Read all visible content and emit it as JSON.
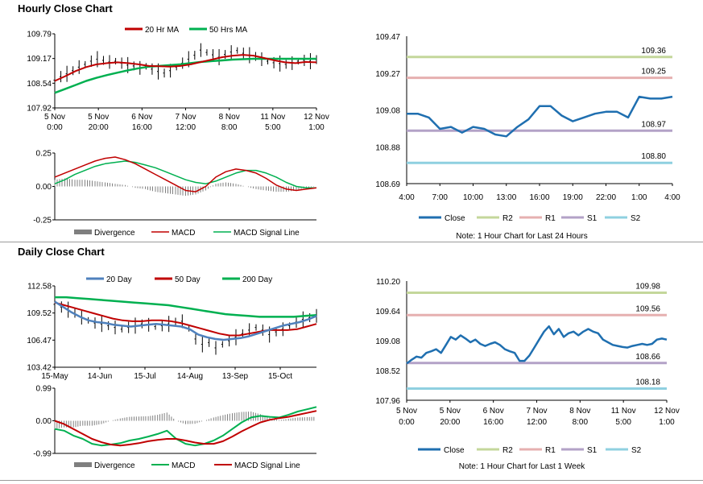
{
  "page": {
    "hourly_title": "Hourly Close Chart",
    "daily_title": "Daily Close Chart"
  },
  "colors": {
    "close": "#1f6fb0",
    "r2": "#c4d79b",
    "r1": "#e6b0b0",
    "s1": "#b3a2c7",
    "s2": "#8fd0e0",
    "ma_red": "#c00000",
    "ma_green": "#00b050",
    "ma_blue": "#4f81bd",
    "divergence": "#7f7f7f"
  },
  "chart_data": [
    {
      "id": "hourly_price",
      "type": "line",
      "title": "",
      "legend": [
        "20 Hr MA",
        "50 Hrs MA"
      ],
      "legend_position": "top",
      "ylim": [
        107.92,
        109.79
      ],
      "yticks": [
        "109.79",
        "109.17",
        "108.54",
        "107.92"
      ],
      "xticks": [
        [
          "5 Nov",
          "0:00"
        ],
        [
          "5 Nov",
          "20:00"
        ],
        [
          "6 Nov",
          "16:00"
        ],
        [
          "7 Nov",
          "12:00"
        ],
        [
          "8 Nov",
          "8:00"
        ],
        [
          "11 Nov",
          "5:00"
        ],
        [
          "12 Nov",
          "1:00"
        ]
      ],
      "series": [
        {
          "name": "Close",
          "values": [
            108.62,
            108.71,
            108.78,
            108.86,
            108.95,
            109.02,
            109.1,
            109.15,
            109.12,
            109.08,
            109.1,
            109.05,
            109.0,
            108.98,
            108.93,
            108.97,
            108.9,
            108.84,
            108.8,
            108.86,
            108.95,
            109.05,
            109.15,
            109.25,
            109.38,
            109.32,
            109.26,
            109.2,
            109.27,
            109.33,
            109.37,
            109.3,
            109.25,
            109.22,
            109.15,
            109.1,
            109.06,
            109.04,
            109.02,
            109.05,
            109.1,
            109.12,
            109.1,
            109.14
          ]
        },
        {
          "name": "20 Hr MA",
          "values": [
            108.6,
            108.72,
            108.85,
            108.95,
            109.02,
            109.05,
            109.07,
            109.05,
            109.02,
            108.98,
            108.97,
            108.96,
            108.98,
            109.02,
            109.08,
            109.14,
            109.2,
            109.24,
            109.26,
            109.24,
            109.18,
            109.12,
            109.07,
            109.05,
            109.08,
            109.07
          ]
        },
        {
          "name": "50 Hrs MA",
          "values": [
            108.3,
            108.4,
            108.5,
            108.6,
            108.68,
            108.75,
            108.81,
            108.87,
            108.92,
            108.96,
            108.98,
            109.0,
            109.02,
            109.05,
            109.08,
            109.1,
            109.12,
            109.14,
            109.15,
            109.16,
            109.16,
            109.16,
            109.16,
            109.16,
            109.16,
            109.16
          ]
        }
      ]
    },
    {
      "id": "hourly_macd",
      "type": "line",
      "legend": [
        "Divergence",
        "MACD",
        "MACD Signal Line"
      ],
      "legend_position": "bottom",
      "ylim": [
        -0.25,
        0.25
      ],
      "yticks": [
        "0.25",
        "0.00",
        "-0.25"
      ],
      "series": [
        {
          "name": "MACD",
          "values": [
            0.07,
            0.1,
            0.13,
            0.16,
            0.19,
            0.21,
            0.22,
            0.2,
            0.17,
            0.13,
            0.09,
            0.05,
            0.01,
            -0.03,
            -0.04,
            0.0,
            0.07,
            0.11,
            0.13,
            0.12,
            0.1,
            0.06,
            0.01,
            -0.02,
            -0.03,
            -0.02,
            -0.01
          ]
        },
        {
          "name": "MACD Signal Line",
          "values": [
            0.02,
            0.05,
            0.09,
            0.12,
            0.15,
            0.17,
            0.18,
            0.19,
            0.18,
            0.16,
            0.14,
            0.11,
            0.08,
            0.05,
            0.03,
            0.02,
            0.04,
            0.07,
            0.1,
            0.12,
            0.12,
            0.1,
            0.07,
            0.03,
            0.0,
            -0.01,
            -0.01
          ]
        },
        {
          "name": "Divergence",
          "values": [
            0.05,
            0.06,
            0.05,
            0.05,
            0.04,
            0.03,
            0.02,
            0.01,
            -0.01,
            -0.02,
            -0.04,
            -0.05,
            -0.06,
            -0.07,
            -0.06,
            -0.03,
            0.02,
            0.03,
            0.02,
            0.0,
            -0.02,
            -0.03,
            -0.04,
            -0.04,
            -0.03,
            -0.01,
            0.0
          ]
        }
      ]
    },
    {
      "id": "hourly_levels",
      "type": "line",
      "legend": [
        "Close",
        "R2",
        "R1",
        "S1",
        "S2"
      ],
      "legend_position": "bottom",
      "note": "Note: 1 Hour Chart for Last 24 Hours",
      "ylim": [
        108.69,
        109.47
      ],
      "yticks": [
        "109.47",
        "109.27",
        "109.08",
        "108.88",
        "108.69"
      ],
      "xticks": [
        "4:00",
        "7:00",
        "10:00",
        "13:00",
        "16:00",
        "19:00",
        "22:00",
        "1:00",
        "4:00"
      ],
      "levels": [
        {
          "name": "R2",
          "value": 109.36,
          "label": "109.36"
        },
        {
          "name": "R1",
          "value": 109.25,
          "label": "109.25"
        },
        {
          "name": "S1",
          "value": 108.97,
          "label": "108.97"
        },
        {
          "name": "S2",
          "value": 108.8,
          "label": "108.80"
        }
      ],
      "series": [
        {
          "name": "Close",
          "values": [
            109.06,
            109.06,
            109.04,
            108.98,
            108.99,
            108.96,
            108.99,
            108.98,
            108.95,
            108.94,
            108.99,
            109.03,
            109.1,
            109.1,
            109.05,
            109.02,
            109.04,
            109.06,
            109.07,
            109.07,
            109.04,
            109.15,
            109.14,
            109.14,
            109.15
          ]
        }
      ]
    },
    {
      "id": "daily_price",
      "type": "line",
      "legend": [
        "20 Day",
        "50 Day",
        "200 Day"
      ],
      "legend_position": "top",
      "ylim": [
        103.42,
        112.58
      ],
      "yticks": [
        "112.58",
        "109.52",
        "106.47",
        "103.42"
      ],
      "xticks": [
        "15-May",
        "14-Jun",
        "15-Jul",
        "14-Aug",
        "13-Sep",
        "15-Oct"
      ],
      "series": [
        {
          "name": "Close",
          "values": [
            110.5,
            110.2,
            109.9,
            109.5,
            109.0,
            108.7,
            108.4,
            108.3,
            108.1,
            107.9,
            107.7,
            107.9,
            108.1,
            108.3,
            108.2,
            108.0,
            108.1,
            108.3,
            108.5,
            108.6,
            107.8,
            106.6,
            106.0,
            106.2,
            105.6,
            106.0,
            106.4,
            106.8,
            107.2,
            107.6,
            107.9,
            107.6,
            107.1,
            107.4,
            107.7,
            108.1,
            108.5,
            108.8,
            109.0,
            109.2
          ]
        },
        {
          "name": "20 Day",
          "values": [
            110.8,
            110.2,
            109.6,
            109.1,
            108.7,
            108.5,
            108.4,
            108.2,
            108.1,
            108.0,
            108.1,
            108.2,
            108.3,
            108.2,
            108.1,
            108.0,
            107.7,
            107.1,
            106.8,
            106.6,
            106.5,
            106.6,
            106.7,
            106.9,
            107.2,
            107.5,
            107.8,
            108.1,
            108.3,
            108.5,
            108.8,
            109.2
          ]
        },
        {
          "name": "50 Day",
          "values": [
            110.7,
            110.4,
            110.1,
            109.8,
            109.5,
            109.2,
            108.9,
            108.7,
            108.6,
            108.6,
            108.7,
            108.7,
            108.6,
            108.4,
            108.1,
            107.8,
            107.5,
            107.2,
            107.0,
            107.0,
            107.2,
            107.4,
            107.6,
            107.6,
            107.6,
            107.7,
            108.0,
            108.3
          ]
        },
        {
          "name": "200 Day",
          "values": [
            111.3,
            111.3,
            111.2,
            111.1,
            111.0,
            110.9,
            110.8,
            110.7,
            110.6,
            110.5,
            110.4,
            110.2,
            110.0,
            109.8,
            109.6,
            109.4,
            109.3,
            109.2,
            109.1,
            109.1,
            109.1,
            109.1,
            109.2,
            109.3
          ]
        }
      ]
    },
    {
      "id": "daily_macd",
      "type": "line",
      "legend": [
        "Divergence",
        "MACD",
        "MACD Signal Line"
      ],
      "legend_position": "bottom",
      "ylim": [
        -0.99,
        0.99
      ],
      "yticks": [
        "0.99",
        "0.00",
        "-0.99"
      ],
      "series": [
        {
          "name": "MACD",
          "values": [
            -0.25,
            -0.3,
            -0.45,
            -0.55,
            -0.7,
            -0.75,
            -0.72,
            -0.68,
            -0.6,
            -0.55,
            -0.48,
            -0.4,
            -0.3,
            -0.55,
            -0.7,
            -0.75,
            -0.7,
            -0.6,
            -0.45,
            -0.25,
            -0.05,
            0.1,
            0.15,
            0.12,
            0.1,
            0.18,
            0.28,
            0.35,
            0.42
          ]
        },
        {
          "name": "MACD Signal Line",
          "values": [
            0.0,
            -0.1,
            -0.25,
            -0.4,
            -0.55,
            -0.65,
            -0.72,
            -0.75,
            -0.72,
            -0.68,
            -0.62,
            -0.58,
            -0.55,
            -0.55,
            -0.6,
            -0.66,
            -0.7,
            -0.7,
            -0.62,
            -0.48,
            -0.32,
            -0.18,
            -0.05,
            0.03,
            0.08,
            0.12,
            0.18,
            0.24,
            0.3
          ]
        },
        {
          "name": "Divergence",
          "values": [
            -0.25,
            -0.2,
            -0.2,
            -0.15,
            -0.15,
            -0.1,
            0.0,
            0.07,
            0.12,
            0.13,
            0.14,
            0.18,
            0.25,
            0.0,
            -0.1,
            -0.09,
            0.0,
            0.1,
            0.17,
            0.23,
            0.27,
            0.28,
            0.2,
            0.09,
            0.02,
            0.06,
            0.1,
            0.11,
            0.12
          ]
        }
      ]
    },
    {
      "id": "daily_levels",
      "type": "line",
      "legend": [
        "Close",
        "R2",
        "R1",
        "S1",
        "S2"
      ],
      "legend_position": "bottom",
      "note": "Note: 1 Hour Chart for Last 1 Week",
      "ylim": [
        107.96,
        110.2
      ],
      "yticks": [
        "110.20",
        "109.64",
        "109.08",
        "108.52",
        "107.96"
      ],
      "xticks": [
        [
          "5 Nov",
          "0:00"
        ],
        [
          "5 Nov",
          "20:00"
        ],
        [
          "6 Nov",
          "16:00"
        ],
        [
          "7 Nov",
          "12:00"
        ],
        [
          "8 Nov",
          "8:00"
        ],
        [
          "11 Nov",
          "5:00"
        ],
        [
          "12 Nov",
          "1:00"
        ]
      ],
      "levels": [
        {
          "name": "R2",
          "value": 109.98,
          "label": "109.98"
        },
        {
          "name": "R1",
          "value": 109.56,
          "label": "109.56"
        },
        {
          "name": "S1",
          "value": 108.66,
          "label": "108.66"
        },
        {
          "name": "S2",
          "value": 108.18,
          "label": "108.18"
        }
      ],
      "series": [
        {
          "name": "Close",
          "values": [
            108.65,
            108.72,
            108.78,
            108.76,
            108.85,
            108.88,
            108.92,
            108.85,
            109.0,
            109.15,
            109.1,
            109.18,
            109.12,
            109.05,
            109.1,
            109.02,
            108.98,
            109.02,
            109.05,
            109.0,
            108.92,
            108.88,
            108.85,
            108.7,
            108.7,
            108.8,
            108.95,
            109.1,
            109.25,
            109.35,
            109.2,
            109.3,
            109.15,
            109.22,
            109.25,
            109.18,
            109.25,
            109.3,
            109.25,
            109.22,
            109.1,
            109.05,
            109.0,
            108.98,
            108.96,
            108.95,
            108.98,
            109.0,
            109.02,
            109.0,
            109.02,
            109.1,
            109.12,
            109.1
          ]
        }
      ]
    }
  ]
}
